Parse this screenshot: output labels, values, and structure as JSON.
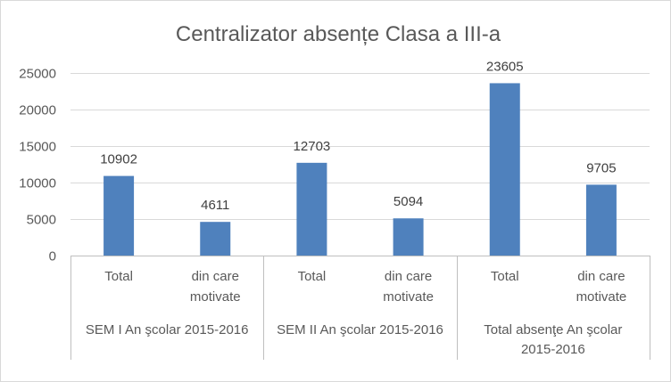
{
  "chart_data": {
    "type": "bar",
    "title": "Centralizator absențe Clasa a III-a",
    "xlabel": "",
    "ylabel": "",
    "ylim": [
      0,
      25000
    ],
    "yticks": [
      0,
      5000,
      10000,
      15000,
      20000,
      25000
    ],
    "grid": true,
    "legend": "none",
    "color": "#4f81bd",
    "groups": [
      {
        "label_lines": [
          "SEM I An şcolar 2015-2016"
        ],
        "categories": [
          {
            "label_lines": [
              "Total"
            ],
            "value": 10902
          },
          {
            "label_lines": [
              "din care",
              "motivate"
            ],
            "value": 4611
          }
        ]
      },
      {
        "label_lines": [
          "SEM II An şcolar 2015-2016"
        ],
        "categories": [
          {
            "label_lines": [
              "Total"
            ],
            "value": 12703
          },
          {
            "label_lines": [
              "din care",
              "motivate"
            ],
            "value": 5094
          }
        ]
      },
      {
        "label_lines": [
          "Total absenţe An şcolar",
          "2015-2016"
        ],
        "categories": [
          {
            "label_lines": [
              "Total"
            ],
            "value": 23605
          },
          {
            "label_lines": [
              "din care",
              "motivate"
            ],
            "value": 9705
          }
        ]
      }
    ]
  }
}
